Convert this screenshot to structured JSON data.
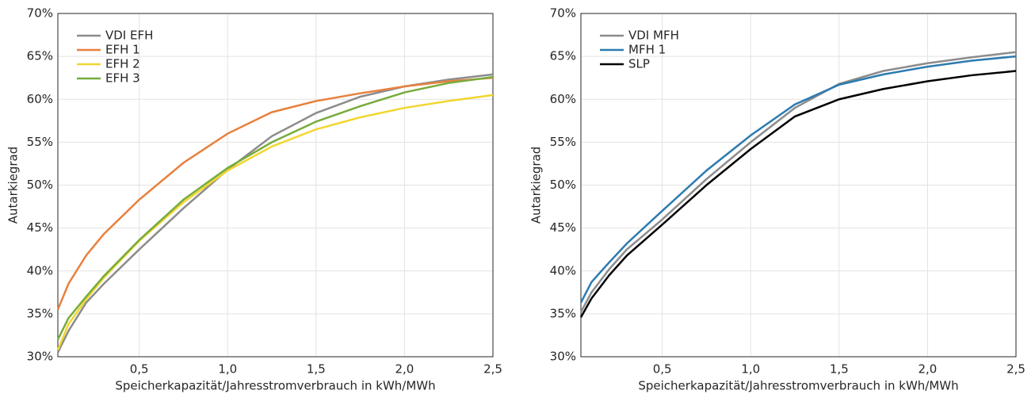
{
  "chart_data": [
    {
      "type": "line",
      "xlabel": "Speicherkapazität/Jahresstromverbrauch in kWh/MWh",
      "ylabel": "Autarkiegrad",
      "x": [
        0.04,
        0.1,
        0.2,
        0.3,
        0.5,
        0.75,
        1.0,
        1.25,
        1.5,
        1.75,
        2.0,
        2.25,
        2.5
      ],
      "series": [
        {
          "name": "VDI EFH",
          "color": "#8c8c8c",
          "values": [
            30.5,
            33,
            36.3,
            38.5,
            42.5,
            47.3,
            51.8,
            55.7,
            58.4,
            60.3,
            61.5,
            62.3,
            62.9
          ]
        },
        {
          "name": "EFH 1",
          "color": "#e8803d",
          "values": [
            35.5,
            38.5,
            41.8,
            44.3,
            48.3,
            52.6,
            56,
            58.5,
            59.8,
            60.7,
            61.5,
            62.1,
            62.5
          ]
        },
        {
          "name": "EFH 2",
          "color": "#f2d630",
          "values": [
            30.8,
            33.8,
            36.7,
            39.2,
            43.5,
            48,
            51.7,
            54.5,
            56.5,
            57.9,
            59,
            59.8,
            60.5
          ]
        },
        {
          "name": "EFH 3",
          "color": "#77ac3c",
          "values": [
            32,
            34.5,
            37,
            39.4,
            43.6,
            48.3,
            52,
            55,
            57.4,
            59.2,
            60.8,
            61.9,
            62.6
          ]
        }
      ],
      "xlim": [
        0.04,
        2.5
      ],
      "ylim": [
        30,
        70
      ],
      "xticks": [
        {
          "value": 0.5,
          "label": "0,5"
        },
        {
          "value": 1.0,
          "label": "1,0"
        },
        {
          "value": 1.5,
          "label": "1,5"
        },
        {
          "value": 2.0,
          "label": "2,0"
        },
        {
          "value": 2.5,
          "label": "2,5"
        }
      ],
      "yticks": [
        {
          "value": 30,
          "label": "30%"
        },
        {
          "value": 35,
          "label": "35%"
        },
        {
          "value": 40,
          "label": "40%"
        },
        {
          "value": 45,
          "label": "45%"
        },
        {
          "value": 50,
          "label": "50%"
        },
        {
          "value": 55,
          "label": "55%"
        },
        {
          "value": 60,
          "label": "60%"
        },
        {
          "value": 65,
          "label": "65%"
        },
        {
          "value": 70,
          "label": "70%"
        }
      ],
      "grid": true,
      "legend": "upper-left"
    },
    {
      "type": "line",
      "xlabel": "Speicherkapazität/Jahresstromverbrauch in kWh/MWh",
      "ylabel": "Autarkiegrad",
      "x": [
        0.04,
        0.1,
        0.2,
        0.3,
        0.5,
        0.75,
        1.0,
        1.25,
        1.5,
        1.75,
        2.0,
        2.25,
        2.5
      ],
      "series": [
        {
          "name": "VDI MFH",
          "color": "#8c8c8c",
          "values": [
            35.2,
            37.5,
            40.2,
            42.5,
            46,
            50.7,
            55,
            59,
            61.8,
            63.3,
            64.2,
            64.9,
            65.5
          ]
        },
        {
          "name": "MFH 1",
          "color": "#2b7bb0",
          "values": [
            36.3,
            38.7,
            41,
            43.2,
            47,
            51.7,
            55.8,
            59.4,
            61.7,
            62.9,
            63.8,
            64.5,
            65
          ]
        },
        {
          "name": "SLP",
          "color": "#000000",
          "values": [
            34.6,
            36.8,
            39.5,
            41.8,
            45.4,
            50,
            54.2,
            58,
            60,
            61.2,
            62.1,
            62.8,
            63.3
          ]
        }
      ],
      "xlim": [
        0.04,
        2.5
      ],
      "ylim": [
        30,
        70
      ],
      "xticks": [
        {
          "value": 0.5,
          "label": "0,5"
        },
        {
          "value": 1.0,
          "label": "1,0"
        },
        {
          "value": 1.5,
          "label": "1,5"
        },
        {
          "value": 2.0,
          "label": "2,0"
        },
        {
          "value": 2.5,
          "label": "2,5"
        }
      ],
      "yticks": [
        {
          "value": 30,
          "label": "30%"
        },
        {
          "value": 35,
          "label": "35%"
        },
        {
          "value": 40,
          "label": "40%"
        },
        {
          "value": 45,
          "label": "45%"
        },
        {
          "value": 50,
          "label": "50%"
        },
        {
          "value": 55,
          "label": "55%"
        },
        {
          "value": 60,
          "label": "60%"
        },
        {
          "value": 65,
          "label": "65%"
        },
        {
          "value": 70,
          "label": "70%"
        }
      ],
      "grid": true,
      "legend": "upper-left"
    }
  ]
}
